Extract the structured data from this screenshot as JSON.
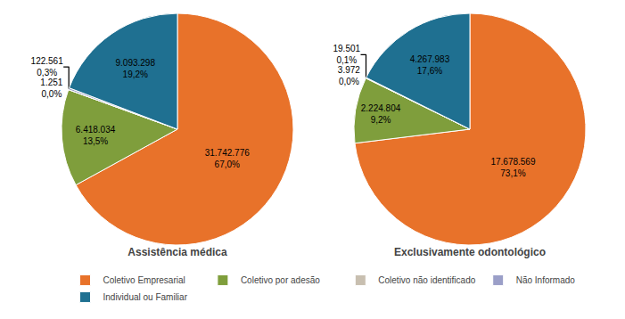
{
  "chart_data": [
    {
      "type": "pie",
      "title": "Assistência médica",
      "categories": [
        "Coletivo Empresarial",
        "Coletivo por adesão",
        "Coletivo não identificado",
        "Não Informado",
        "Individual ou Familiar"
      ],
      "values": [
        31742776,
        6418034,
        1251,
        122561,
        9093298
      ],
      "value_labels": [
        "31.742.776\n67,0%",
        "6.418.034\n13,5%",
        "1.251\n0,0%",
        "122.561\n0,3%",
        "9.093.298\n19,2%"
      ],
      "colors": [
        "#e8722a",
        "#7f9e3c",
        "#c8bfb0",
        "#9b9fc8",
        "#1f7091"
      ],
      "data_labels": true,
      "legend": "bottom"
    },
    {
      "type": "pie",
      "title": "Exclusivamente odontológico",
      "categories": [
        "Coletivo Empresarial",
        "Coletivo por adesão",
        "Coletivo não identificado",
        "Não Informado",
        "Individual ou Familiar"
      ],
      "values": [
        17678569,
        2224804,
        3972,
        19501,
        4267983
      ],
      "value_labels": [
        "17.678.569\n73,1%",
        "2.224.804\n9,2%",
        "3.972\n0,0%",
        "19.501\n0,1%",
        "4.267.983\n17,6%"
      ],
      "colors": [
        "#e8722a",
        "#7f9e3c",
        "#c8bfb0",
        "#9b9fc8",
        "#1f7091"
      ],
      "data_labels": true,
      "legend": "bottom"
    }
  ]
}
